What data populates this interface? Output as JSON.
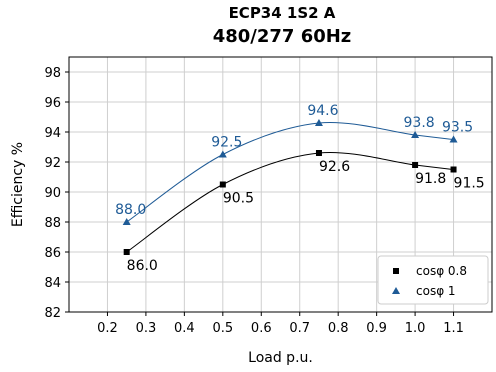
{
  "chart_data": {
    "type": "line",
    "title": "ECP34 1S2 A",
    "subtitle": "480/277 60Hz",
    "xlabel": "Load p.u.",
    "ylabel": "Efficiency %",
    "xlim": [
      0.1,
      1.2
    ],
    "ylim": [
      82,
      99
    ],
    "xticks": [
      0.2,
      0.3,
      0.4,
      0.5,
      0.6,
      0.7,
      0.8,
      0.9,
      1.0,
      1.1
    ],
    "xtick_labels": [
      "0.2",
      "0.3",
      "0.4",
      "0.5",
      "0.6",
      "0.7",
      "0.8",
      "0.9",
      "1.0",
      "1.1"
    ],
    "yticks": [
      82,
      84,
      86,
      88,
      90,
      92,
      94,
      96,
      98
    ],
    "ytick_labels": [
      "82",
      "84",
      "86",
      "88",
      "90",
      "92",
      "94",
      "96",
      "98"
    ],
    "grid": true,
    "legend_position": "bottom-right",
    "series": [
      {
        "name": "cosφ 0.8",
        "color": "#000000",
        "marker": "square",
        "x": [
          0.25,
          0.5,
          0.75,
          1.0,
          1.1
        ],
        "values": [
          86.0,
          90.5,
          92.6,
          91.8,
          91.5
        ],
        "labels": [
          "86.0",
          "90.5",
          "92.6",
          "91.8",
          "91.5"
        ]
      },
      {
        "name": "cosφ 1",
        "color": "#1f5b96",
        "marker": "triangle",
        "x": [
          0.25,
          0.5,
          0.75,
          1.0,
          1.1
        ],
        "values": [
          88.0,
          92.5,
          94.6,
          93.8,
          93.5
        ],
        "labels": [
          "88.0",
          "92.5",
          "94.6",
          "93.8",
          "93.5"
        ]
      }
    ]
  }
}
